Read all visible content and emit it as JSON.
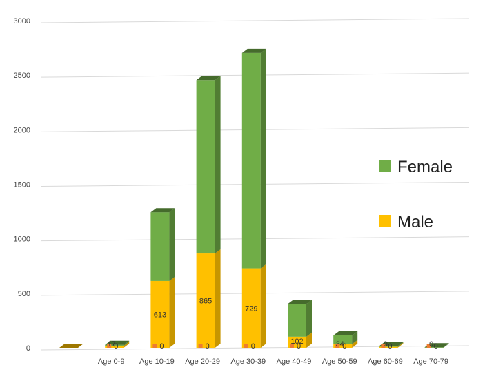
{
  "chart_data": {
    "type": "bar",
    "stacked": true,
    "style": "3d-column",
    "categories": [
      "",
      "Age 0-9",
      "Age 10-19",
      "Age 20-29",
      "Age 30-39",
      "Age 40-49",
      "Age 50-59",
      "Age 60-69",
      "Age 70-79"
    ],
    "series": [
      {
        "name": "Male",
        "color": "#FFC000",
        "values": [
          0,
          17,
          613,
          865,
          729,
          102,
          34,
          9,
          0
        ],
        "labels": [
          "",
          "17",
          "613",
          "865",
          "729",
          "102",
          "34",
          "9",
          "0"
        ]
      },
      {
        "name": "Female",
        "color": "#70AD47",
        "values": [
          0,
          10,
          630,
          1590,
          1975,
          300,
          80,
          6,
          5
        ]
      }
    ],
    "zero_labels": [
      "",
      "0",
      "0",
      "0",
      "0",
      "0",
      "0",
      "0",
      "0"
    ],
    "ylim": [
      0,
      3000
    ],
    "yticks": [
      0,
      500,
      1000,
      1500,
      2000,
      2500,
      3000
    ],
    "grid": true,
    "legend": {
      "position": "right",
      "entries": [
        "Female",
        "Male"
      ]
    }
  }
}
